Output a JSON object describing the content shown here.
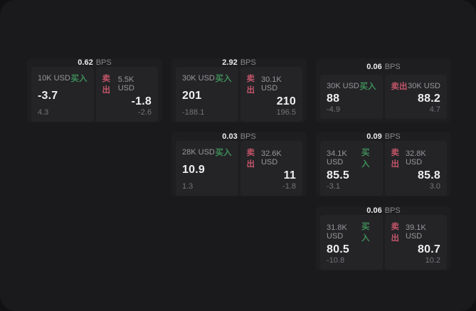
{
  "labels": {
    "unit": "BPS",
    "buy": "买入",
    "sell": "卖出"
  },
  "colors": {
    "buy_green": "#3e8e58",
    "sell_red": "#c25568",
    "label_gray": "#98989b",
    "sub_gray": "#747477",
    "muted_label": "#88888b"
  },
  "cards": [
    {
      "bps": "0.62",
      "grid": {
        "row": 1,
        "col": 1
      },
      "buy": {
        "notional": "10K USD",
        "value": "-3.7",
        "sub": "4.3"
      },
      "sell": {
        "notional": "5.5K USD",
        "value": "-1.8",
        "sub": "-2.6"
      }
    },
    {
      "bps": "2.92",
      "grid": {
        "row": 1,
        "col": 2
      },
      "buy": {
        "notional": "30K USD",
        "value": "201",
        "sub": "-188.1"
      },
      "sell": {
        "notional": "30.1K USD",
        "value": "210",
        "sub": "196.5"
      }
    },
    {
      "bps": "0.06",
      "grid": {
        "row": 1,
        "col": 3
      },
      "buy": {
        "notional": "30K USD",
        "value": "88",
        "sub": "-4.9"
      },
      "sell": {
        "notional": "30K USD",
        "value": "88.2",
        "sub": "4.7"
      }
    },
    {
      "bps": "0.03",
      "grid": {
        "row": 2,
        "col": 2
      },
      "buy": {
        "notional": "28K USD",
        "value": "10.9",
        "sub": "1.3"
      },
      "sell": {
        "notional": "32.6K USD",
        "value": "11",
        "sub": "-1.8"
      }
    },
    {
      "bps": "0.09",
      "grid": {
        "row": 2,
        "col": 3
      },
      "buy": {
        "notional": "34.1K USD",
        "value": "85.5",
        "sub": "-3.1"
      },
      "sell": {
        "notional": "32.8K USD",
        "value": "85.8",
        "sub": "3.0"
      }
    },
    {
      "bps": "0.06",
      "grid": {
        "row": 3,
        "col": 3
      },
      "buy": {
        "notional": "31.8K USD",
        "value": "80.5",
        "sub": "-10.8"
      },
      "sell": {
        "notional": "39.1K USD",
        "value": "80.7",
        "sub": "10.2"
      }
    }
  ]
}
